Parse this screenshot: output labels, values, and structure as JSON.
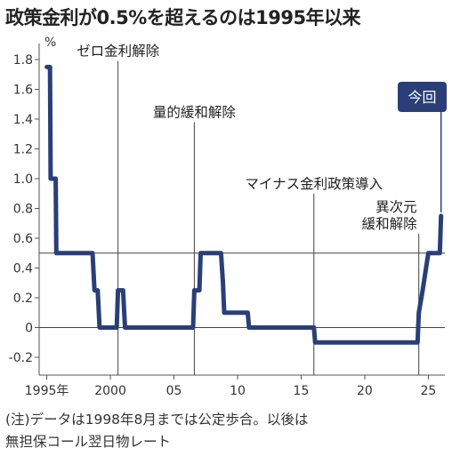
{
  "title": "政策金利が0.5%を超えるのは1995年以来",
  "note_lines": [
    "(注)データは1998年8月までは公定歩合。以後は",
    "無担保コール翌日物レート"
  ],
  "chart_data": {
    "type": "line",
    "title": "政策金利が0.5%を超えるのは1995年以来",
    "ylabel": "%",
    "xlabel": "",
    "ylim": [
      -0.2,
      1.8
    ],
    "xlim": [
      1994.4,
      2026.3
    ],
    "grid": false,
    "y_ticks": [
      {
        "v": 1.8,
        "label": "1.8"
      },
      {
        "v": 1.6,
        "label": "1.6"
      },
      {
        "v": 1.4,
        "label": "1.4"
      },
      {
        "v": 1.2,
        "label": "1.2"
      },
      {
        "v": 1.0,
        "label": "1.0"
      },
      {
        "v": 0.8,
        "label": "0.8"
      },
      {
        "v": 0.6,
        "label": "0.6"
      },
      {
        "v": 0.4,
        "label": "0.4"
      },
      {
        "v": 0.2,
        "label": "0.2"
      },
      {
        "v": 0.0,
        "label": "0"
      },
      {
        "v": -0.2,
        "label": "-0.2"
      }
    ],
    "x_ticks": [
      {
        "v": 1995,
        "label": "1995年"
      },
      {
        "v": 2000,
        "label": "2000"
      },
      {
        "v": 2005,
        "label": "05"
      },
      {
        "v": 2010,
        "label": "10"
      },
      {
        "v": 2015,
        "label": "15"
      },
      {
        "v": 2020,
        "label": "20"
      },
      {
        "v": 2025,
        "label": "25"
      }
    ],
    "reference_lines": [
      0.5,
      0
    ],
    "series": [
      {
        "color": "#2a3f78",
        "points": [
          [
            1995.0,
            1.75
          ],
          [
            1995.25,
            1.75
          ],
          [
            1995.3,
            1.0
          ],
          [
            1995.7,
            1.0
          ],
          [
            1995.75,
            0.5
          ],
          [
            1998.6,
            0.5
          ],
          [
            1998.75,
            0.25
          ],
          [
            1999.0,
            0.25
          ],
          [
            1999.15,
            0.0
          ],
          [
            2000.5,
            0.0
          ],
          [
            2000.6,
            0.25
          ],
          [
            2001.0,
            0.25
          ],
          [
            2001.15,
            0.0
          ],
          [
            2006.5,
            0.0
          ],
          [
            2006.6,
            0.25
          ],
          [
            2007.0,
            0.25
          ],
          [
            2007.1,
            0.5
          ],
          [
            2008.7,
            0.5
          ],
          [
            2008.85,
            0.3
          ],
          [
            2008.95,
            0.1
          ],
          [
            2010.8,
            0.1
          ],
          [
            2010.9,
            0.0
          ],
          [
            2016.0,
            0.0
          ],
          [
            2016.1,
            -0.1
          ],
          [
            2024.15,
            -0.1
          ],
          [
            2024.25,
            0.1
          ],
          [
            2024.55,
            0.25
          ],
          [
            2025.0,
            0.5
          ],
          [
            2025.9,
            0.5
          ],
          [
            2026.0,
            0.75
          ]
        ]
      }
    ],
    "annotations": [
      {
        "x": 2000.6,
        "y_top": 1.79,
        "lines": [
          "ゼロ金利解除"
        ]
      },
      {
        "x": 2006.6,
        "y_top": 1.38,
        "lines": [
          "量的緩和解除"
        ]
      },
      {
        "x": 2016.0,
        "y_top": 0.9,
        "lines": [
          "マイナス金利政策導入"
        ]
      },
      {
        "x": 2024.25,
        "y_top": 0.63,
        "lines": [
          "異次元",
          "緩和解除"
        ]
      }
    ],
    "callout": {
      "label": "今回",
      "x": 2026.0,
      "y": 0.75
    }
  }
}
